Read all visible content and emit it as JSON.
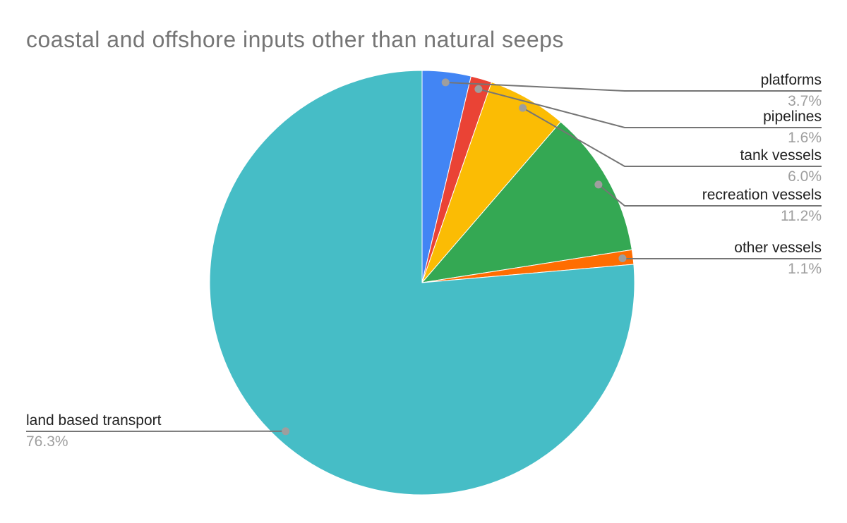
{
  "chart_data": {
    "type": "pie",
    "title": "coastal and offshore inputs other than natural seeps",
    "start_angle_deg": 0,
    "direction": "clockwise",
    "legend_position": "labeled-callouts",
    "series": [
      {
        "label": "platforms",
        "value": 3.7,
        "display": "3.7%",
        "color": "#4285F4"
      },
      {
        "label": "pipelines",
        "value": 1.6,
        "display": "1.6%",
        "color": "#EA4335"
      },
      {
        "label": "tank vessels",
        "value": 6.0,
        "display": "6.0%",
        "color": "#FBBC04"
      },
      {
        "label": "recreation vessels",
        "value": 11.2,
        "display": "11.2%",
        "color": "#34A853"
      },
      {
        "label": "other vessels",
        "value": 1.1,
        "display": "1.1%",
        "color": "#FF6D01"
      },
      {
        "label": "land based transport",
        "value": 76.3,
        "display": "76.3%",
        "color": "#46BDC6"
      }
    ]
  },
  "style": {
    "background": "#ffffff",
    "title_color": "#757575",
    "label_color": "#212121",
    "percent_color": "#9e9e9e",
    "leader_line_color": "#757575",
    "leader_dot_color": "#9e9e9e",
    "slice_border_color": "#ffffff"
  }
}
